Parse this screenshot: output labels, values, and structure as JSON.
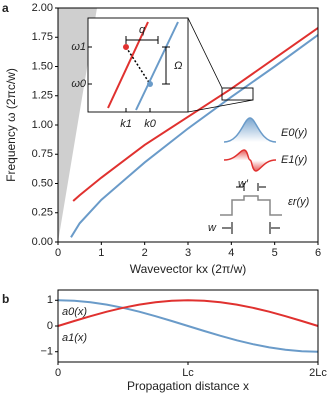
{
  "chart_data": [
    {
      "type": "line",
      "panel_label": "a",
      "xlabel": "Wavevector kx (2π/w)",
      "ylabel": "Frequency ω (2πc/w)",
      "xlim": [
        0,
        6
      ],
      "ylim": [
        0,
        2
      ],
      "xticks": [
        0,
        1,
        2,
        3,
        4,
        5,
        6
      ],
      "yticks": [
        {
          "value": 0,
          "label": "0.00"
        },
        0.25,
        {
          "value": 0.5,
          "label": "0.50"
        },
        0.75,
        {
          "value": 1,
          "label": "1.00"
        },
        1.25,
        {
          "value": 1.5,
          "label": "1.50"
        },
        1.75,
        {
          "value": 2,
          "label": "2.00"
        }
      ],
      "series": [
        {
          "name": "E0(y)",
          "color": "#6a9bc9",
          "x": [
            0.3,
            0.5,
            1,
            2,
            3,
            4,
            5,
            6
          ],
          "values": [
            0.04,
            0.16,
            0.36,
            0.68,
            0.97,
            1.24,
            1.5,
            1.77
          ]
        },
        {
          "name": "E1(y)",
          "color": "#e0312f",
          "x": [
            0.35,
            0.5,
            1,
            2,
            3,
            4,
            5,
            6
          ],
          "values": [
            0.35,
            0.4,
            0.55,
            0.83,
            1.07,
            1.31,
            1.57,
            1.83
          ]
        }
      ],
      "annotations": {
        "omega1": "ω1",
        "omega0": "ω0",
        "k1": "k1",
        "k0": "k0",
        "q": "q",
        "Omega": "Ω",
        "w_prime": "w′",
        "epsilon": "εr(y)",
        "w": "w"
      }
    },
    {
      "type": "line",
      "panel_label": "b",
      "xlabel": "Propagation distance x",
      "xlim": [
        0,
        2
      ],
      "ylim": [
        -1.4,
        1.4
      ],
      "xticks": [
        0,
        {
          "value": 1,
          "label": "Lc"
        },
        {
          "value": 2,
          "label": "2Lc"
        }
      ],
      "yticks": [
        {
          "value": -1,
          "label": "−1"
        },
        0,
        1
      ],
      "series": [
        {
          "name": "a0(x)",
          "color": "#6a9bc9",
          "x": [
            0,
            0.125,
            0.25,
            0.375,
            0.5,
            0.625,
            0.75,
            0.875,
            1,
            1.125,
            1.25,
            1.375,
            1.5,
            1.625,
            1.75,
            1.875,
            2
          ],
          "values": [
            1,
            0.981,
            0.924,
            0.831,
            0.707,
            0.556,
            0.383,
            0.195,
            0,
            -0.195,
            -0.383,
            -0.556,
            -0.707,
            -0.831,
            -0.924,
            -0.981,
            -1
          ]
        },
        {
          "name": "a1(x)",
          "color": "#e0312f",
          "x": [
            0,
            0.125,
            0.25,
            0.375,
            0.5,
            0.625,
            0.75,
            0.875,
            1,
            1.125,
            1.25,
            1.375,
            1.5,
            1.625,
            1.75,
            1.875,
            2
          ],
          "values": [
            0,
            0.195,
            0.383,
            0.556,
            0.707,
            0.831,
            0.924,
            0.981,
            1,
            0.981,
            0.924,
            0.831,
            0.707,
            0.556,
            0.383,
            0.195,
            0
          ]
        }
      ]
    }
  ]
}
